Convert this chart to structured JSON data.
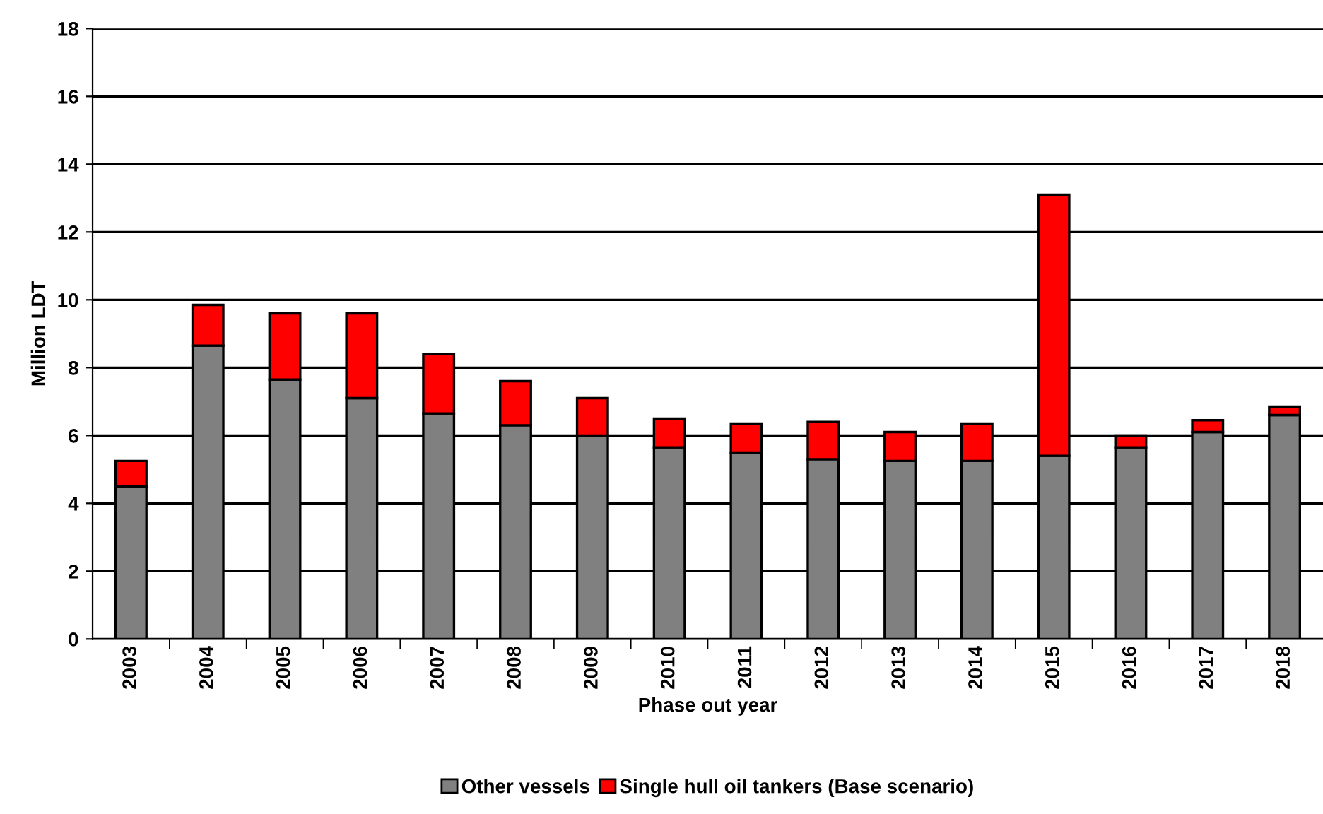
{
  "chart_data": {
    "type": "bar",
    "stacked": true,
    "xlabel": "Phase out year",
    "ylabel": "Million LDT",
    "categories": [
      "2003",
      "2004",
      "2005",
      "2006",
      "2007",
      "2008",
      "2009",
      "2010",
      "2011",
      "2012",
      "2013",
      "2014",
      "2015",
      "2016",
      "2017",
      "2018"
    ],
    "series": [
      {
        "name": "Other vessels",
        "color": "#808080",
        "values": [
          4.5,
          8.65,
          7.65,
          7.1,
          6.65,
          6.3,
          6.0,
          5.65,
          5.5,
          5.3,
          5.25,
          5.25,
          5.4,
          5.65,
          6.1,
          6.6
        ]
      },
      {
        "name": "Single hull oil tankers (Base scenario)",
        "color": "#ff0000",
        "values": [
          0.75,
          1.2,
          1.95,
          2.5,
          1.75,
          1.3,
          1.1,
          0.85,
          0.85,
          1.1,
          0.85,
          1.1,
          7.7,
          0.35,
          0.35,
          0.25
        ]
      }
    ],
    "ylim": [
      0,
      18
    ],
    "yticks": [
      0,
      2,
      4,
      6,
      8,
      10,
      12,
      14,
      16,
      18
    ],
    "grid": "y",
    "legend": "bottom"
  }
}
